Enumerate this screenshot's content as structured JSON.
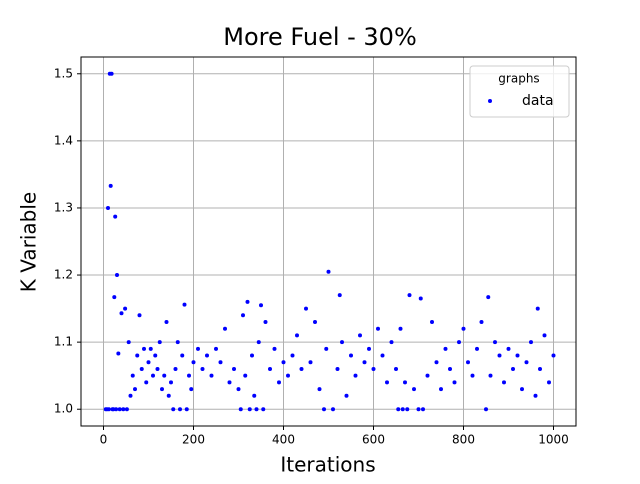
{
  "chart_data": {
    "type": "scatter",
    "title": "More Fuel - 30%",
    "x_label": "Iterations",
    "y_label": "K Variable",
    "legend_title": "graphs",
    "legend": "upper right",
    "grid": true,
    "xlim": [
      -50,
      1050
    ],
    "xticks": [
      0,
      200,
      400,
      600,
      800,
      1000
    ],
    "ylim": [
      0.975,
      1.525
    ],
    "yticks": [
      {
        "value": 1,
        "label": "1.0"
      },
      1.1,
      1.2,
      1.3,
      1.4,
      1.5
    ],
    "x": [
      5,
      8,
      10,
      12,
      14,
      16,
      18,
      20,
      22,
      24,
      26,
      28,
      30,
      33,
      36,
      40,
      44,
      48,
      52,
      56,
      60,
      65,
      70,
      75,
      80,
      85,
      90,
      95,
      100,
      105,
      110,
      115,
      120,
      125,
      130,
      135,
      140,
      145,
      150,
      155,
      160,
      165,
      170,
      175,
      180,
      185,
      190,
      195,
      200,
      210,
      220,
      230,
      240,
      250,
      260,
      270,
      280,
      290,
      300,
      305,
      310,
      315,
      320,
      325,
      330,
      335,
      340,
      345,
      350,
      355,
      360,
      370,
      380,
      390,
      400,
      410,
      420,
      430,
      440,
      450,
      460,
      470,
      480,
      490,
      495,
      500,
      510,
      520,
      525,
      530,
      540,
      550,
      560,
      570,
      580,
      590,
      600,
      610,
      620,
      630,
      640,
      650,
      655,
      660,
      665,
      670,
      675,
      680,
      690,
      700,
      705,
      710,
      720,
      730,
      740,
      750,
      760,
      770,
      780,
      790,
      800,
      810,
      820,
      830,
      840,
      850,
      855,
      860,
      870,
      880,
      890,
      900,
      910,
      920,
      930,
      940,
      950,
      960,
      965,
      970,
      980,
      990,
      1000
    ],
    "series": [
      {
        "name": "data",
        "color": "#0000ff",
        "values": [
          1.0,
          1.0,
          1.3,
          1.0,
          1.5,
          1.333,
          1.5,
          1.0,
          1.0,
          1.167,
          1.287,
          1.0,
          1.2,
          1.083,
          1.0,
          1.143,
          1.0,
          1.15,
          1.0,
          1.1,
          1.02,
          1.05,
          1.03,
          1.08,
          1.14,
          1.06,
          1.09,
          1.04,
          1.07,
          1.09,
          1.05,
          1.08,
          1.06,
          1.1,
          1.03,
          1.05,
          1.13,
          1.02,
          1.04,
          1.0,
          1.06,
          1.1,
          1.0,
          1.08,
          1.156,
          1.0,
          1.05,
          1.03,
          1.07,
          1.09,
          1.06,
          1.08,
          1.05,
          1.09,
          1.07,
          1.12,
          1.04,
          1.06,
          1.03,
          1.0,
          1.14,
          1.05,
          1.16,
          1.0,
          1.08,
          1.02,
          1.0,
          1.1,
          1.155,
          1.0,
          1.13,
          1.06,
          1.09,
          1.04,
          1.07,
          1.05,
          1.08,
          1.11,
          1.06,
          1.15,
          1.07,
          1.13,
          1.03,
          1.0,
          1.09,
          1.205,
          1.0,
          1.06,
          1.17,
          1.1,
          1.02,
          1.08,
          1.05,
          1.11,
          1.07,
          1.09,
          1.06,
          1.12,
          1.08,
          1.04,
          1.1,
          1.06,
          1.0,
          1.12,
          1.0,
          1.04,
          1.0,
          1.17,
          1.03,
          1.0,
          1.165,
          1.0,
          1.05,
          1.13,
          1.07,
          1.03,
          1.09,
          1.06,
          1.04,
          1.1,
          1.12,
          1.07,
          1.05,
          1.09,
          1.13,
          1.0,
          1.167,
          1.05,
          1.1,
          1.08,
          1.04,
          1.09,
          1.06,
          1.08,
          1.03,
          1.07,
          1.1,
          1.02,
          1.15,
          1.06,
          1.11,
          1.04,
          1.08
        ]
      }
    ]
  }
}
